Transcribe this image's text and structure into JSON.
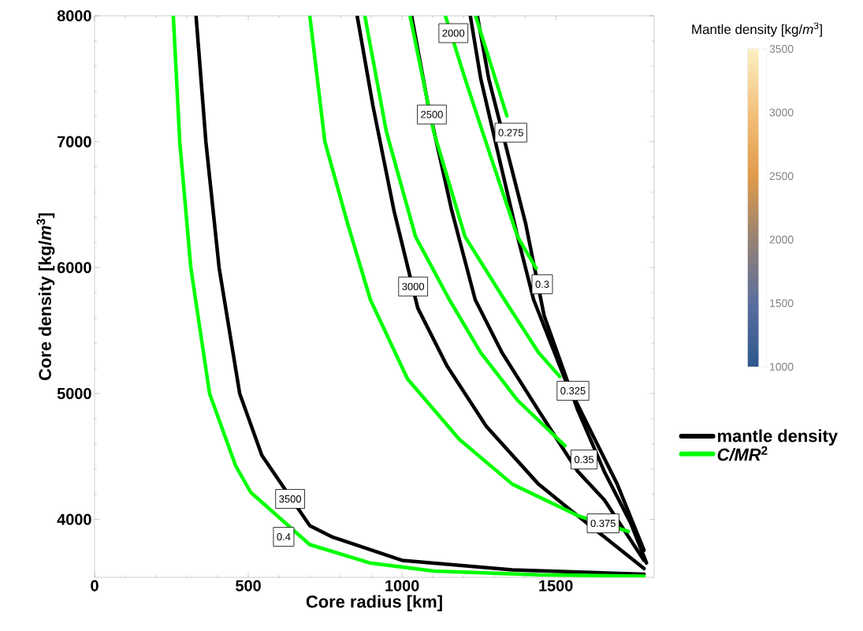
{
  "chart_data": {
    "type": "line",
    "xlabel": "Core radius [km]",
    "ylabel": "Core density [kg/*m*$^{3}$]",
    "clabel": "Mantle density [kg/*m*$^{3}$]",
    "xlim": [
      0,
      1820
    ],
    "ylim": [
      3540,
      8000
    ],
    "xticks": [
      0,
      500,
      1000,
      1500
    ],
    "yticks": [
      4000,
      5000,
      6000,
      7000,
      8000
    ],
    "clim": [
      1000,
      3500
    ],
    "cticks": [
      1000,
      1500,
      2000,
      2500,
      3000,
      3500
    ],
    "legend": "right",
    "grid": false,
    "series": [
      {
        "name": "mantle density",
        "color": "#000000",
        "x": [
          330,
          362,
          405,
          472,
          544,
          700,
          774,
          1000,
          1359,
          1787
        ],
        "values": [
          8000,
          7000,
          6000,
          5000,
          4510,
          3950,
          3860,
          3675,
          3600,
          3565
        ]
      },
      {
        "color": "#000000",
        "x": [
          854,
          905,
          974,
          1051,
          1146,
          1274,
          1444,
          1530,
          1787
        ],
        "values": [
          8000,
          7290,
          6450,
          5680,
          5220,
          4740,
          4280,
          4110,
          3610
        ]
      },
      {
        "color": "#000000",
        "x": [
          1031,
          1085,
          1162,
          1238,
          1325,
          1444,
          1572,
          1658,
          1787
        ],
        "values": [
          8000,
          7290,
          6450,
          5745,
          5325,
          4865,
          4380,
          4155,
          3675
        ]
      },
      {
        "color": "#000000",
        "x": [
          1222,
          1256,
          1316,
          1376,
          1428,
          1530,
          1615,
          1700,
          1787
        ],
        "values": [
          8000,
          7500,
          6870,
          6245,
          5745,
          5115,
          4695,
          4280,
          3755
        ]
      },
      {
        "color": "#000000",
        "x": [
          1245,
          1282,
          1402,
          1462,
          1572,
          1658,
          1744,
          1795
        ],
        "values": [
          8000,
          7500,
          6350,
          5620,
          4865,
          4380,
          3970,
          3655
        ]
      },
      {
        "name": "*C/MR*$^{2}$",
        "color": "#00ff00",
        "x": [
          256,
          277,
          313,
          374,
          459,
          508,
          700,
          895,
          1103,
          1444,
          1787
        ],
        "values": [
          8000,
          7000,
          6000,
          5000,
          4425,
          4215,
          3800,
          3655,
          3590,
          3560,
          3550
        ]
      },
      {
        "color": "#00ff00",
        "x": [
          700,
          749,
          823,
          897,
          1018,
          1187,
          1359,
          1572,
          1736
        ],
        "values": [
          8000,
          7000,
          6350,
          5745,
          5115,
          4635,
          4280,
          4030,
          3905
        ]
      },
      {
        "color": "#00ff00",
        "x": [
          879,
          949,
          1044,
          1154,
          1256,
          1376,
          1530
        ],
        "values": [
          8000,
          7080,
          6245,
          5745,
          5325,
          4945,
          4585
        ]
      },
      {
        "color": "#00ff00",
        "x": [
          1026,
          1103,
          1205,
          1333,
          1444,
          1513
        ],
        "values": [
          8000,
          7080,
          6245,
          5745,
          5325,
          5135
        ]
      },
      {
        "color": "#00ff00",
        "x": [
          1141,
          1205,
          1290,
          1376,
          1436
        ],
        "values": [
          8000,
          7500,
          6870,
          6245,
          5995
        ]
      },
      {
        "color": "#00ff00",
        "x": [
          1239,
          1290,
          1341
        ],
        "values": [
          8000,
          7605,
          7205
        ]
      }
    ],
    "annotations": [
      {
        "text": "3500",
        "x": 636,
        "y": 4163
      },
      {
        "text": "0.4",
        "x": 615,
        "y": 3862
      },
      {
        "text": "3000",
        "x": 1036,
        "y": 5850
      },
      {
        "text": "2500",
        "x": 1097,
        "y": 7216
      },
      {
        "text": "2000",
        "x": 1167,
        "y": 7862
      },
      {
        "text": "0.275",
        "x": 1354,
        "y": 7072
      },
      {
        "text": "0.3",
        "x": 1456,
        "y": 5868
      },
      {
        "text": "0.325",
        "x": 1556,
        "y": 5022
      },
      {
        "text": "0.35",
        "x": 1592,
        "y": 4476
      },
      {
        "text": "0.375",
        "x": 1654,
        "y": 3969
      }
    ]
  }
}
